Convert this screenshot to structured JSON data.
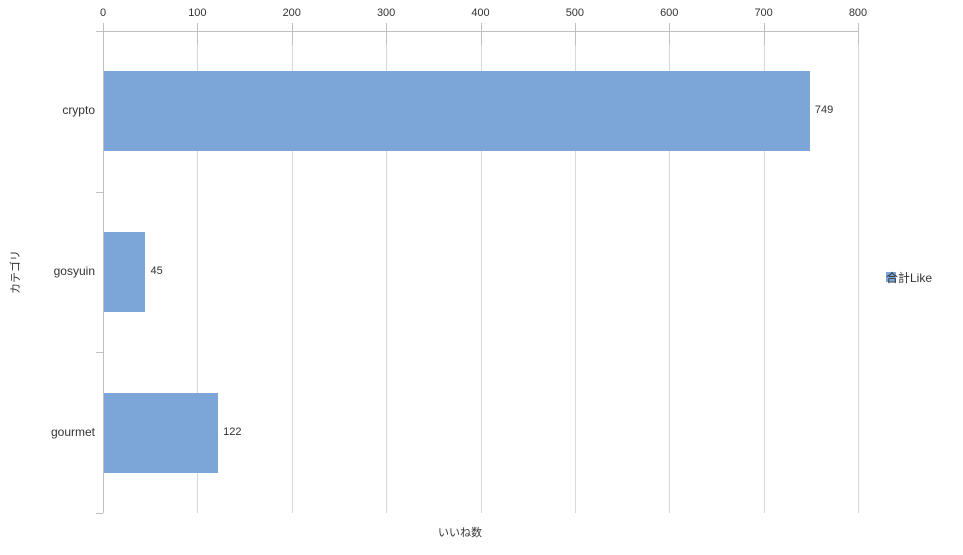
{
  "chart_data": {
    "type": "bar",
    "orientation": "horizontal",
    "categories": [
      "crypto",
      "gosyuin",
      "gourmet"
    ],
    "series": [
      {
        "name": "合計Like",
        "values": [
          749,
          45,
          122
        ]
      }
    ],
    "data_labels_shown": true,
    "xlabel": "いいね数",
    "ylabel": "カテゴリ",
    "xlim": [
      0,
      800
    ],
    "x_ticks": [
      0,
      100,
      200,
      300,
      400,
      500,
      600,
      700,
      800
    ],
    "grid": true,
    "legend_position": "right"
  },
  "colors": {
    "bar": "#7CA6D8",
    "axis": "#BFBFBF",
    "gridline": "#D9D9D9",
    "text": "#333333"
  }
}
